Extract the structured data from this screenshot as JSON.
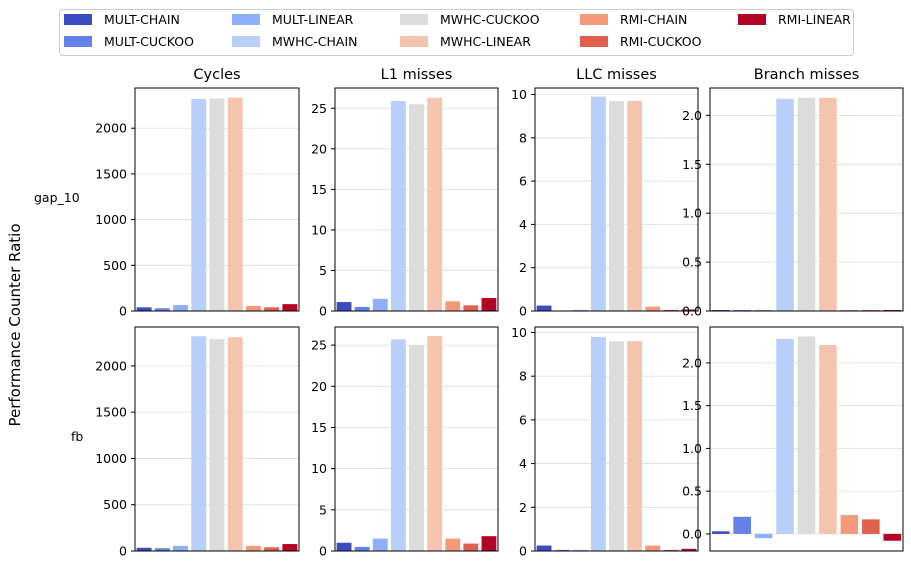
{
  "figure": {
    "ylabel": "Performance Counter Ratio"
  },
  "legend": {
    "placement": "top-center",
    "items": [
      {
        "label": "MULT-CHAIN",
        "color": "#3b4cc0"
      },
      {
        "label": "MULT-CUCKOO",
        "color": "#6282ea"
      },
      {
        "label": "MULT-LINEAR",
        "color": "#8db0fe"
      },
      {
        "label": "MWHC-CHAIN",
        "color": "#b8d0f9"
      },
      {
        "label": "MWHC-CUCKOO",
        "color": "#dddcdc"
      },
      {
        "label": "MWHC-LINEAR",
        "color": "#f5c4ac"
      },
      {
        "label": "RMI-CHAIN",
        "color": "#f49a7b"
      },
      {
        "label": "RMI-CUCKOO",
        "color": "#de604d"
      },
      {
        "label": "RMI-LINEAR",
        "color": "#b40426"
      }
    ]
  },
  "chart_data": [
    {
      "type": "bar",
      "row": "gap_10",
      "title": "Cycles",
      "grid": "y",
      "categories": [
        "MULT-CHAIN",
        "MULT-CUCKOO",
        "MULT-LINEAR",
        "MWHC-CHAIN",
        "MWHC-CUCKOO",
        "MWHC-LINEAR",
        "RMI-CHAIN",
        "RMI-CUCKOO",
        "RMI-LINEAR"
      ],
      "values": [
        40,
        30,
        65,
        2320,
        2325,
        2335,
        55,
        40,
        75
      ],
      "ylim": [
        0,
        2440
      ],
      "yticks": [
        0,
        500,
        1000,
        1500,
        2000
      ]
    },
    {
      "type": "bar",
      "row": "gap_10",
      "title": "L1 misses",
      "grid": "y",
      "categories": [
        "MULT-CHAIN",
        "MULT-CUCKOO",
        "MULT-LINEAR",
        "MWHC-CHAIN",
        "MWHC-CUCKOO",
        "MWHC-LINEAR",
        "RMI-CHAIN",
        "RMI-CUCKOO",
        "RMI-LINEAR"
      ],
      "values": [
        1.1,
        0.5,
        1.5,
        25.9,
        25.5,
        26.3,
        1.2,
        0.7,
        1.6
      ],
      "ylim": [
        0,
        27.5
      ],
      "yticks": [
        0,
        5,
        10,
        15,
        20,
        25
      ]
    },
    {
      "type": "bar",
      "row": "gap_10",
      "title": "LLC misses",
      "grid": "y",
      "categories": [
        "MULT-CHAIN",
        "MULT-CUCKOO",
        "MULT-LINEAR",
        "MWHC-CHAIN",
        "MWHC-CUCKOO",
        "MWHC-LINEAR",
        "RMI-CHAIN",
        "RMI-CUCKOO",
        "RMI-LINEAR"
      ],
      "values": [
        0.25,
        0.02,
        0.05,
        9.9,
        9.7,
        9.7,
        0.2,
        0.05,
        0.07
      ],
      "ylim": [
        0,
        10.3
      ],
      "yticks": [
        0,
        2,
        4,
        6,
        8,
        10
      ]
    },
    {
      "type": "bar",
      "row": "gap_10",
      "title": "Branch misses",
      "grid": "y",
      "categories": [
        "MULT-CHAIN",
        "MULT-CUCKOO",
        "MULT-LINEAR",
        "MWHC-CHAIN",
        "MWHC-CUCKOO",
        "MWHC-LINEAR",
        "RMI-CHAIN",
        "RMI-CUCKOO",
        "RMI-LINEAR"
      ],
      "values": [
        0.01,
        0.01,
        0.01,
        2.17,
        2.18,
        2.18,
        0.01,
        0.01,
        0.01
      ],
      "ylim": [
        0,
        2.28
      ],
      "yticks": [
        0.0,
        0.5,
        1.0,
        1.5,
        2.0
      ]
    },
    {
      "type": "bar",
      "row": "fb",
      "title": "",
      "grid": "y",
      "categories": [
        "MULT-CHAIN",
        "MULT-CUCKOO",
        "MULT-LINEAR",
        "MWHC-CHAIN",
        "MWHC-CUCKOO",
        "MWHC-LINEAR",
        "RMI-CHAIN",
        "RMI-CUCKOO",
        "RMI-LINEAR"
      ],
      "values": [
        35,
        30,
        55,
        2320,
        2290,
        2310,
        55,
        40,
        75
      ],
      "ylim": [
        0,
        2420
      ],
      "yticks": [
        0,
        500,
        1000,
        1500,
        2000
      ]
    },
    {
      "type": "bar",
      "row": "fb",
      "title": "",
      "grid": "y",
      "categories": [
        "MULT-CHAIN",
        "MULT-CUCKOO",
        "MULT-LINEAR",
        "MWHC-CHAIN",
        "MWHC-CUCKOO",
        "MWHC-LINEAR",
        "RMI-CHAIN",
        "RMI-CUCKOO",
        "RMI-LINEAR"
      ],
      "values": [
        1.0,
        0.5,
        1.5,
        25.7,
        25.0,
        26.1,
        1.5,
        0.9,
        1.8
      ],
      "ylim": [
        0,
        27.2
      ],
      "yticks": [
        0,
        5,
        10,
        15,
        20,
        25
      ]
    },
    {
      "type": "bar",
      "row": "fb",
      "title": "",
      "grid": "y",
      "categories": [
        "MULT-CHAIN",
        "MULT-CUCKOO",
        "MULT-LINEAR",
        "MWHC-CHAIN",
        "MWHC-CUCKOO",
        "MWHC-LINEAR",
        "RMI-CHAIN",
        "RMI-CUCKOO",
        "RMI-LINEAR"
      ],
      "values": [
        0.25,
        0.05,
        0.05,
        9.8,
        9.6,
        9.6,
        0.25,
        0.05,
        0.1
      ],
      "ylim": [
        0,
        10.25
      ],
      "yticks": [
        0,
        2,
        4,
        6,
        8,
        10
      ]
    },
    {
      "type": "bar",
      "row": "fb",
      "title": "",
      "grid": "y",
      "categories": [
        "MULT-CHAIN",
        "MULT-CUCKOO",
        "MULT-LINEAR",
        "MWHC-CHAIN",
        "MWHC-CUCKOO",
        "MWHC-LINEAR",
        "RMI-CHAIN",
        "RMI-CUCKOO",
        "RMI-LINEAR"
      ],
      "values": [
        0.03,
        0.2,
        -0.05,
        2.28,
        2.31,
        2.21,
        0.22,
        0.17,
        -0.08
      ],
      "ylim": [
        -0.2,
        2.42
      ],
      "yticks": [
        0.0,
        0.5,
        1.0,
        1.5,
        2.0
      ]
    }
  ]
}
